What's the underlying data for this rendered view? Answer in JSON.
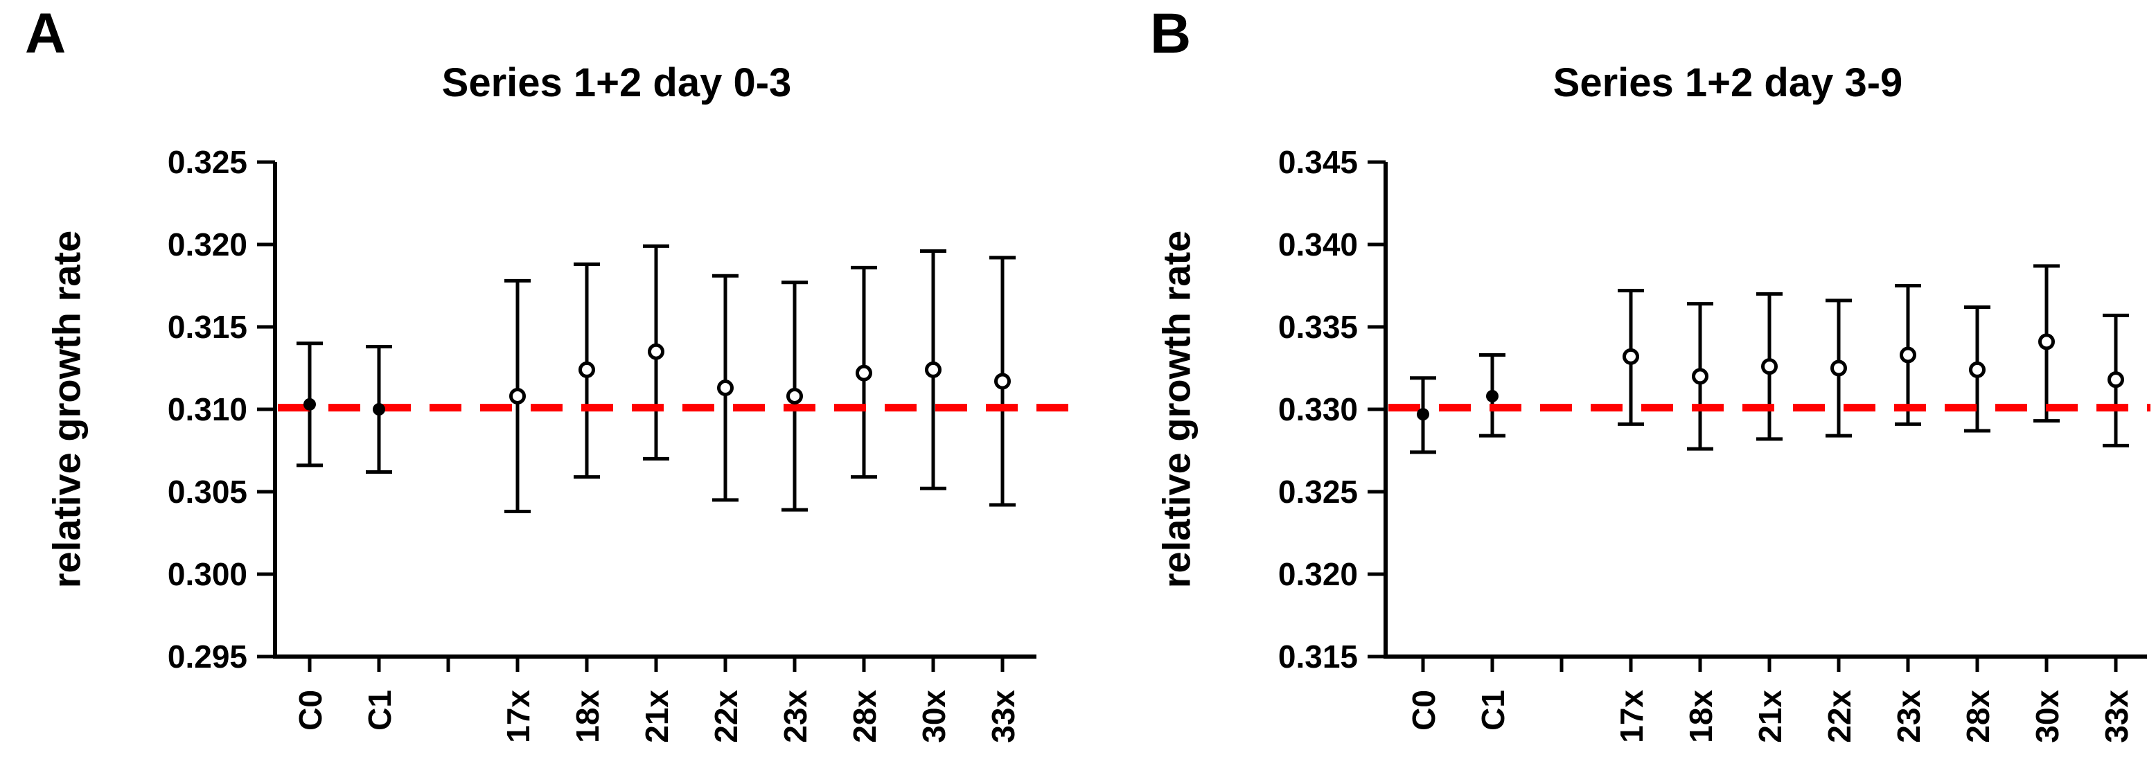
{
  "figure_title": "",
  "panels": [
    {
      "corner_label": "A",
      "title": "Series 1+2 day 0-3",
      "ylabel": "relative growth rate"
    },
    {
      "corner_label": "B",
      "title": "Series 1+2 day 3-9",
      "ylabel": "relative growth rate"
    }
  ],
  "colors": {
    "reference_line": "#ff0000",
    "axis": "#000000",
    "marker_fill_open": "#ffffff",
    "marker_fill_closed": "#000000"
  },
  "chart_data": [
    {
      "type": "scatter",
      "subtype": "point-with-error-bars",
      "panel": "A",
      "title": "Series 1+2 day 0-3",
      "xlabel": "",
      "ylabel": "relative growth rate",
      "ylim": [
        0.295,
        0.325
      ],
      "ytick_step": 0.005,
      "ytick_labels": [
        "0.325",
        "0.320",
        "0.315",
        "0.310",
        "0.305",
        "0.300",
        "0.295"
      ],
      "grid": false,
      "legend": "none",
      "reference_line": {
        "value": 0.3101,
        "color": "#ff0000",
        "style": "dashed"
      },
      "categories": [
        "C0",
        "C1",
        "17x",
        "18x",
        "21x",
        "22x",
        "23x",
        "28x",
        "30x",
        "33x"
      ],
      "slot_indices": [
        0,
        1,
        3,
        4,
        5,
        6,
        7,
        8,
        9,
        10
      ],
      "total_slots": 11,
      "points": [
        {
          "label": "C0",
          "mean": 0.3103,
          "lo": 0.3066,
          "hi": 0.314,
          "marker": "filled-circle"
        },
        {
          "label": "C1",
          "mean": 0.31,
          "lo": 0.3062,
          "hi": 0.3138,
          "marker": "filled-circle"
        },
        {
          "label": "17x",
          "mean": 0.3108,
          "lo": 0.3038,
          "hi": 0.3178,
          "marker": "open-circle"
        },
        {
          "label": "18x",
          "mean": 0.3124,
          "lo": 0.3059,
          "hi": 0.3188,
          "marker": "open-circle"
        },
        {
          "label": "21x",
          "mean": 0.3135,
          "lo": 0.307,
          "hi": 0.3199,
          "marker": "open-circle"
        },
        {
          "label": "22x",
          "mean": 0.3113,
          "lo": 0.3045,
          "hi": 0.3181,
          "marker": "open-circle"
        },
        {
          "label": "23x",
          "mean": 0.3108,
          "lo": 0.3039,
          "hi": 0.3177,
          "marker": "open-circle"
        },
        {
          "label": "28x",
          "mean": 0.3122,
          "lo": 0.3059,
          "hi": 0.3186,
          "marker": "open-circle"
        },
        {
          "label": "30x",
          "mean": 0.3124,
          "lo": 0.3052,
          "hi": 0.3196,
          "marker": "open-circle"
        },
        {
          "label": "33x",
          "mean": 0.3117,
          "lo": 0.3042,
          "hi": 0.3192,
          "marker": "open-circle"
        }
      ]
    },
    {
      "type": "scatter",
      "subtype": "point-with-error-bars",
      "panel": "B",
      "title": "Series 1+2 day 3-9",
      "xlabel": "",
      "ylabel": "relative growth rate",
      "ylim": [
        0.315,
        0.345
      ],
      "ytick_step": 0.005,
      "ytick_labels": [
        "0.345",
        "0.340",
        "0.335",
        "0.330",
        "0.325",
        "0.320",
        "0.315"
      ],
      "grid": false,
      "legend": "none",
      "reference_line": {
        "value": 0.3301,
        "color": "#ff0000",
        "style": "dashed"
      },
      "categories": [
        "C0",
        "C1",
        "17x",
        "18x",
        "21x",
        "22x",
        "23x",
        "28x",
        "30x",
        "33x"
      ],
      "slot_indices": [
        0,
        1,
        3,
        4,
        5,
        6,
        7,
        8,
        9,
        10
      ],
      "total_slots": 11,
      "points": [
        {
          "label": "C0",
          "mean": 0.3297,
          "lo": 0.3274,
          "hi": 0.3319,
          "marker": "filled-circle"
        },
        {
          "label": "C1",
          "mean": 0.3308,
          "lo": 0.3284,
          "hi": 0.3333,
          "marker": "filled-circle"
        },
        {
          "label": "17x",
          "mean": 0.3332,
          "lo": 0.3291,
          "hi": 0.3372,
          "marker": "open-circle"
        },
        {
          "label": "18x",
          "mean": 0.332,
          "lo": 0.3276,
          "hi": 0.3364,
          "marker": "open-circle"
        },
        {
          "label": "21x",
          "mean": 0.3326,
          "lo": 0.3282,
          "hi": 0.337,
          "marker": "open-circle"
        },
        {
          "label": "22x",
          "mean": 0.3325,
          "lo": 0.3284,
          "hi": 0.3366,
          "marker": "open-circle"
        },
        {
          "label": "23x",
          "mean": 0.3333,
          "lo": 0.3291,
          "hi": 0.3375,
          "marker": "open-circle"
        },
        {
          "label": "28x",
          "mean": 0.3324,
          "lo": 0.3287,
          "hi": 0.3362,
          "marker": "open-circle"
        },
        {
          "label": "30x",
          "mean": 0.3341,
          "lo": 0.3293,
          "hi": 0.3387,
          "marker": "open-circle"
        },
        {
          "label": "33x",
          "mean": 0.3318,
          "lo": 0.3278,
          "hi": 0.3357,
          "marker": "open-circle"
        }
      ]
    }
  ]
}
